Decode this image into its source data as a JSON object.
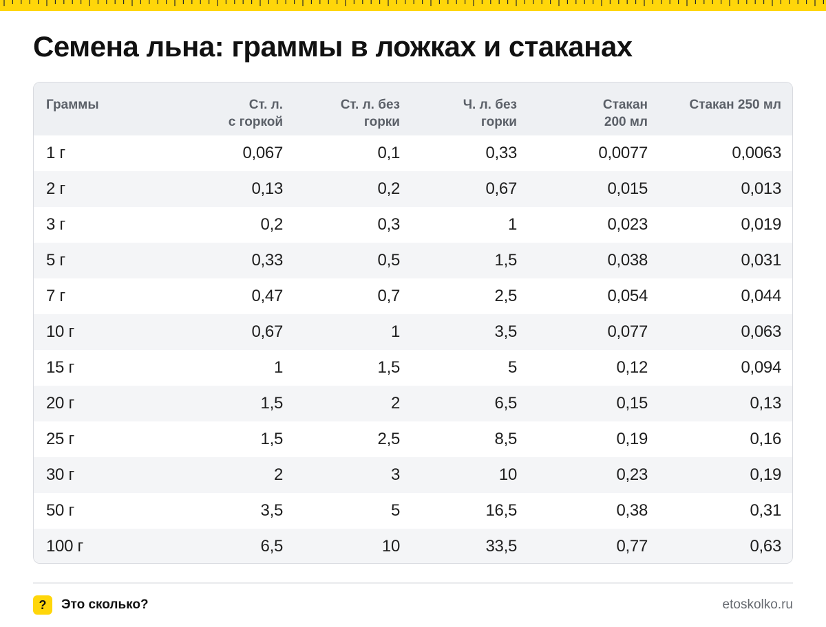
{
  "title": "Семена льна: граммы в ложках и стаканах",
  "table": {
    "headers": [
      {
        "line1": "Граммы",
        "line2": ""
      },
      {
        "line1": "Ст. л.",
        "line2": "с горкой"
      },
      {
        "line1": "Ст. л. без",
        "line2": "горки"
      },
      {
        "line1": "Ч. л. без",
        "line2": "горки"
      },
      {
        "line1": "Стакан",
        "line2": "200 мл"
      },
      {
        "line1": "Стакан 250 мл",
        "line2": ""
      }
    ],
    "rows": [
      [
        "1 г",
        "0,067",
        "0,1",
        "0,33",
        "0,0077",
        "0,0063"
      ],
      [
        "2 г",
        "0,13",
        "0,2",
        "0,67",
        "0,015",
        "0,013"
      ],
      [
        "3 г",
        "0,2",
        "0,3",
        "1",
        "0,023",
        "0,019"
      ],
      [
        "5 г",
        "0,33",
        "0,5",
        "1,5",
        "0,038",
        "0,031"
      ],
      [
        "7 г",
        "0,47",
        "0,7",
        "2,5",
        "0,054",
        "0,044"
      ],
      [
        "10 г",
        "0,67",
        "1",
        "3,5",
        "0,077",
        "0,063"
      ],
      [
        "15 г",
        "1",
        "1,5",
        "5",
        "0,12",
        "0,094"
      ],
      [
        "20 г",
        "1,5",
        "2",
        "6,5",
        "0,15",
        "0,13"
      ],
      [
        "25 г",
        "1,5",
        "2,5",
        "8,5",
        "0,19",
        "0,16"
      ],
      [
        "30 г",
        "2",
        "3",
        "10",
        "0,23",
        "0,19"
      ],
      [
        "50 г",
        "3,5",
        "5",
        "16,5",
        "0,38",
        "0,31"
      ],
      [
        "100 г",
        "6,5",
        "10",
        "33,5",
        "0,77",
        "0,63"
      ]
    ]
  },
  "footer": {
    "badge": "?",
    "brand": "Это сколько?",
    "site": "etoskolko.ru"
  },
  "colors": {
    "accent": "#ffd60a",
    "header_bg": "#eef0f3",
    "stripe_bg": "#f4f5f7"
  },
  "icons": {
    "ruler": "ruler-stripe",
    "badge": "question-mark-icon"
  }
}
